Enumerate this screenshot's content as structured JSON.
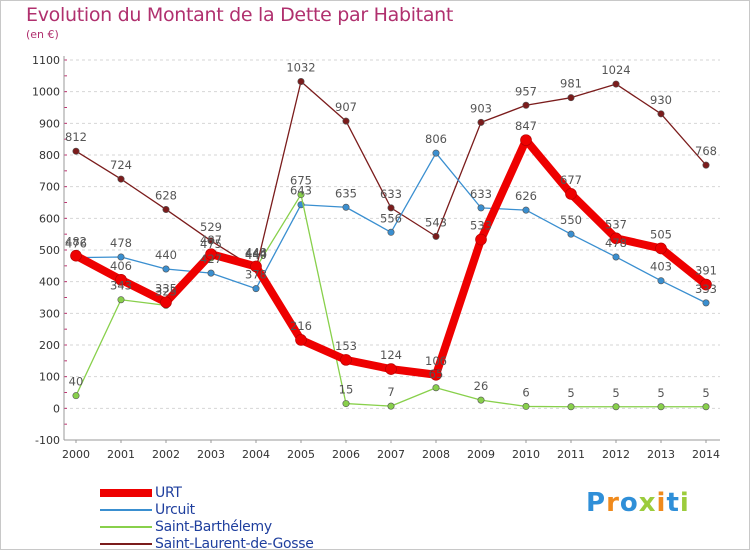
{
  "chart_data": {
    "type": "line",
    "title": "Evolution du Montant de la Dette par Habitant",
    "subtitle": "(en €)",
    "xlabel": "",
    "ylabel": "",
    "x": [
      2000,
      2001,
      2002,
      2003,
      2004,
      2005,
      2006,
      2007,
      2008,
      2009,
      2010,
      2011,
      2012,
      2013,
      2014
    ],
    "ylim": [
      -100,
      1100
    ],
    "yticks": [
      -100,
      0,
      100,
      200,
      300,
      400,
      500,
      600,
      700,
      800,
      900,
      1000,
      1100
    ],
    "grid": "horizontal dashed",
    "legend_position": "bottom-left",
    "series": [
      {
        "name": "Saint-Laurent-de-Gosse",
        "color": "#7b1c1c",
        "values": [
          812,
          724,
          628,
          529,
          440,
          1032,
          907,
          633,
          543,
          903,
          957,
          981,
          1024,
          930,
          768
        ]
      },
      {
        "name": "Urcuit",
        "color": "#3a8fd0",
        "values": [
          476,
          478,
          440,
          427,
          378,
          643,
          635,
          556,
          806,
          633,
          626,
          550,
          478,
          403,
          333
        ]
      },
      {
        "name": "Saint-Barthélemy",
        "color": "#88d04b",
        "values": [
          40,
          343,
          325,
          475,
          444,
          675,
          15,
          7,
          65,
          26,
          6,
          5,
          5,
          5,
          5
        ]
      },
      {
        "name": "URT",
        "color": "#ee0000",
        "values": [
          482,
          406,
          335,
          487,
          448,
          216,
          153,
          124,
          106,
          533,
          847,
          677,
          537,
          505,
          391
        ]
      }
    ]
  },
  "legend": {
    "items": [
      {
        "label": "URT",
        "color": "#ee0000",
        "thickness": 8
      },
      {
        "label": "Urcuit",
        "color": "#3a8fd0",
        "thickness": 2
      },
      {
        "label": "Saint-Barthélemy",
        "color": "#88d04b",
        "thickness": 2
      },
      {
        "label": "Saint-Laurent-de-Gosse",
        "color": "#7b1c1c",
        "thickness": 2
      }
    ]
  },
  "logo": {
    "text": "Proxiti",
    "letters": [
      "P",
      "r",
      "o",
      "x",
      "i",
      "t",
      "i"
    ],
    "colors": [
      "#2f8fd8",
      "#f08a1c",
      "#2f8fd8",
      "#9ccc3c",
      "#f08a1c",
      "#2f8fd8",
      "#9ccc3c"
    ]
  }
}
